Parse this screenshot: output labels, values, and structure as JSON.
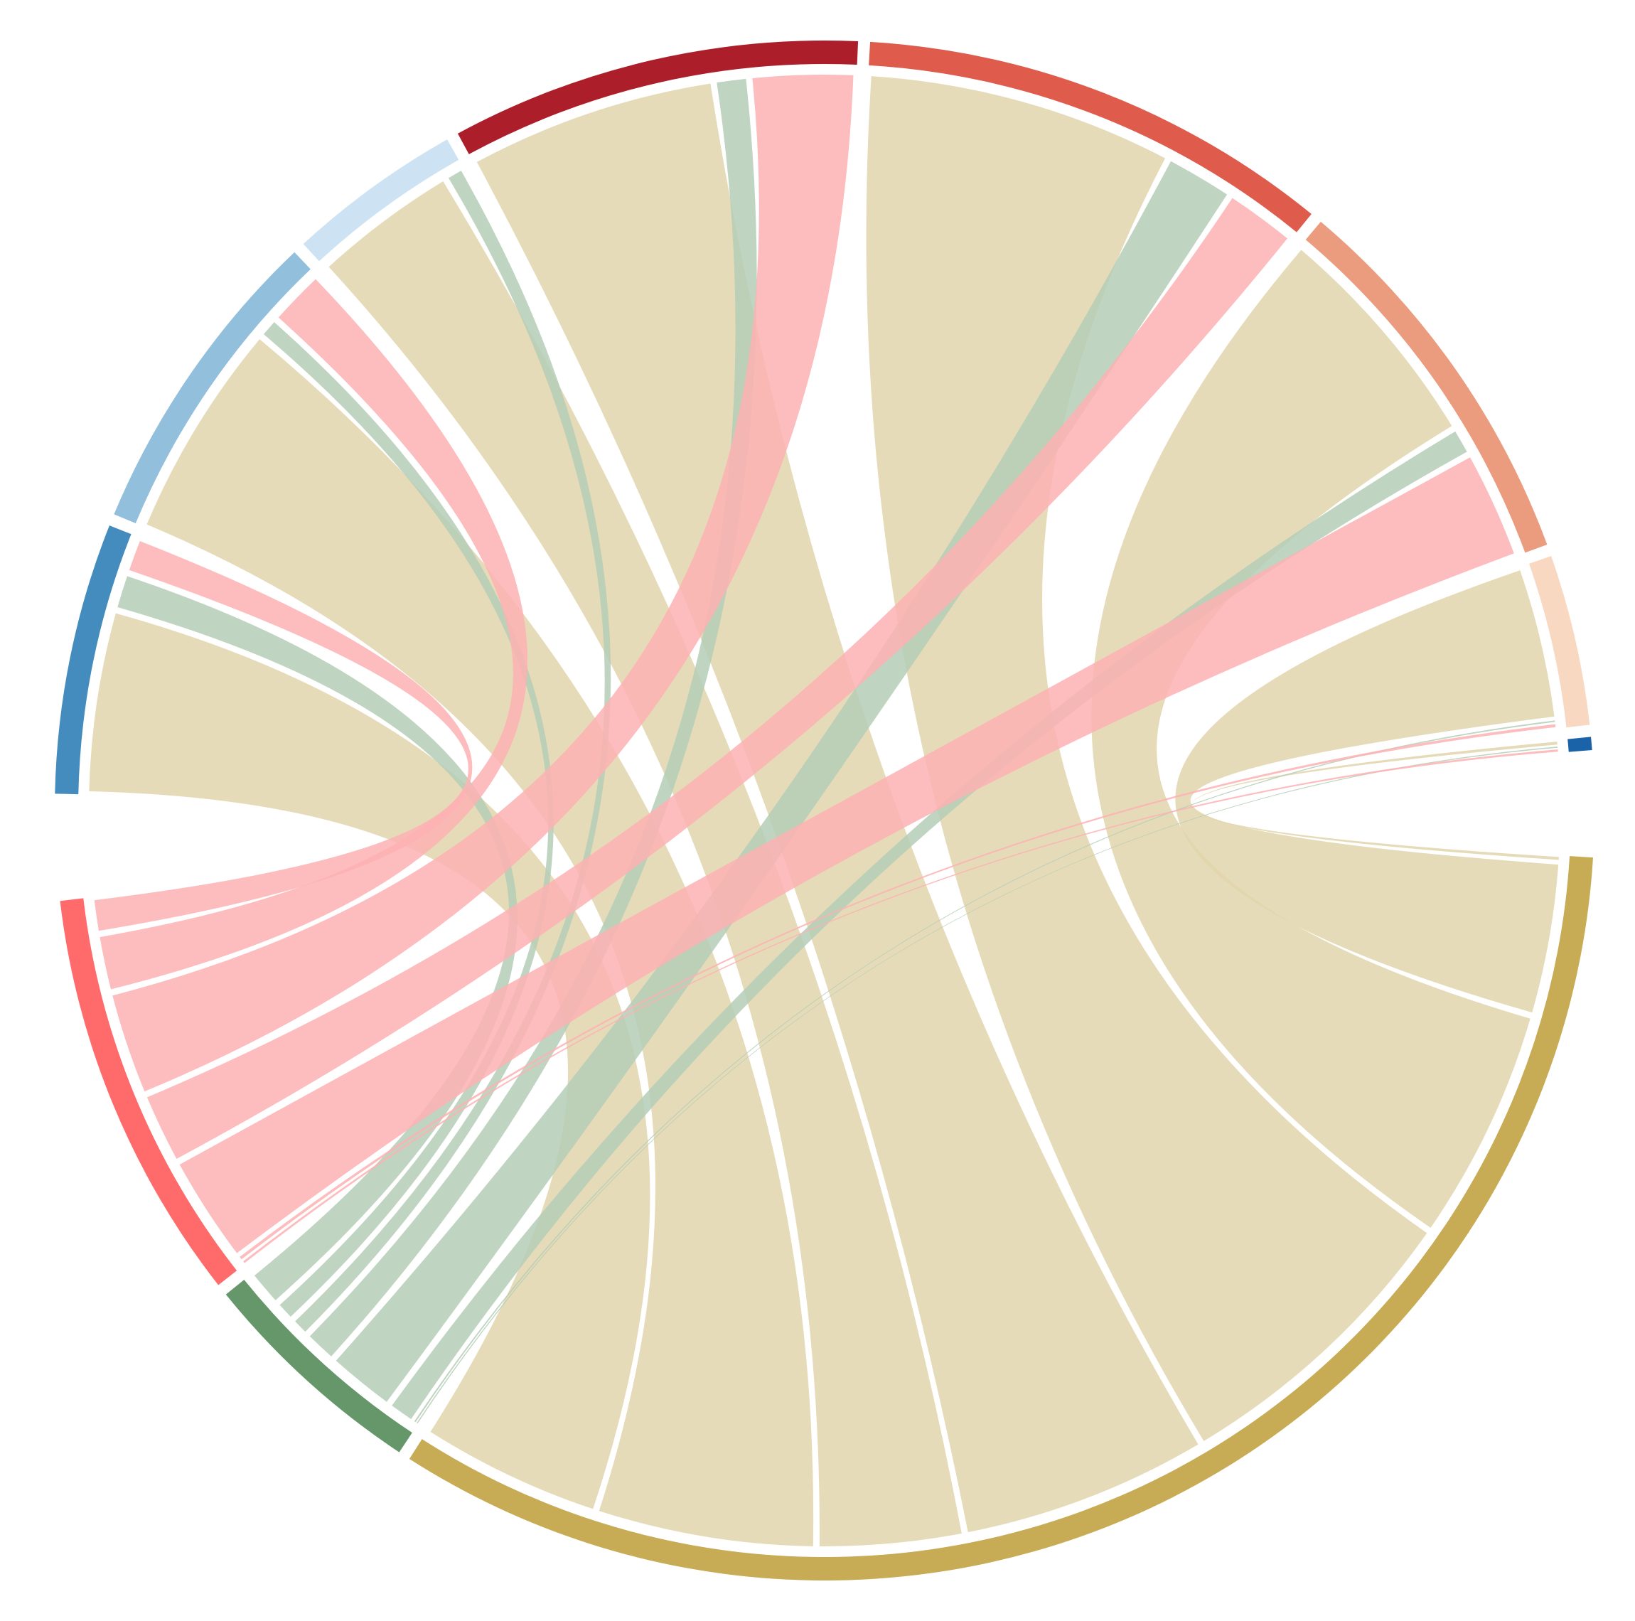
{
  "chart_data": {
    "type": "chord",
    "title": "",
    "legend": "none",
    "sources": [
      {
        "id": "red-source",
        "color": "#FF6B6B",
        "ribbon_color": "#FDB2B3"
      },
      {
        "id": "green-source",
        "color": "#65976A",
        "ribbon_color": "#B4CDB6"
      },
      {
        "id": "gold-source",
        "color": "#C7AC55",
        "ribbon_color": "#E2D5AB"
      }
    ],
    "targets": [
      {
        "id": "t1",
        "color": "#1A63A8"
      },
      {
        "id": "t2",
        "color": "#F9D8C2"
      },
      {
        "id": "t3",
        "color": "#EB9C7E"
      },
      {
        "id": "t4",
        "color": "#DF5B4C"
      },
      {
        "id": "t5",
        "color": "#AD1E2B"
      },
      {
        "id": "t6",
        "color": "#CDE3F3"
      },
      {
        "id": "t7",
        "color": "#92C0DC"
      },
      {
        "id": "t8",
        "color": "#448CBE"
      }
    ],
    "flows": [
      {
        "source": "red-source",
        "target": "t1",
        "value": 0.3
      },
      {
        "source": "red-source",
        "target": "t2",
        "value": 0.4
      },
      {
        "source": "red-source",
        "target": "t3",
        "value": 7.5
      },
      {
        "source": "red-source",
        "target": "t4",
        "value": 5.0
      },
      {
        "source": "red-source",
        "target": "t5",
        "value": 7.2
      },
      {
        "source": "red-source",
        "target": "t6",
        "value": 0.0
      },
      {
        "source": "red-source",
        "target": "t7",
        "value": 4.0
      },
      {
        "source": "red-source",
        "target": "t8",
        "value": 2.5
      },
      {
        "source": "green-source",
        "target": "t1",
        "value": 0.15
      },
      {
        "source": "green-source",
        "target": "t2",
        "value": 0.2
      },
      {
        "source": "green-source",
        "target": "t3",
        "value": 2.0
      },
      {
        "source": "green-source",
        "target": "t4",
        "value": 4.8
      },
      {
        "source": "green-source",
        "target": "t5",
        "value": 2.4
      },
      {
        "source": "green-source",
        "target": "t6",
        "value": 1.4
      },
      {
        "source": "green-source",
        "target": "t7",
        "value": 1.5
      },
      {
        "source": "green-source",
        "target": "t8",
        "value": 2.6
      },
      {
        "source": "gold-source",
        "target": "t1",
        "value": 0.4
      },
      {
        "source": "gold-source",
        "target": "t2",
        "value": 10.5
      },
      {
        "source": "gold-source",
        "target": "t3",
        "value": 16.0
      },
      {
        "source": "gold-source",
        "target": "t4",
        "value": 21.0
      },
      {
        "source": "gold-source",
        "target": "t5",
        "value": 17.0
      },
      {
        "source": "gold-source",
        "target": "t6",
        "value": 10.0
      },
      {
        "source": "gold-source",
        "target": "t7",
        "value": 15.0
      },
      {
        "source": "gold-source",
        "target": "t8",
        "value": 12.5
      }
    ]
  }
}
